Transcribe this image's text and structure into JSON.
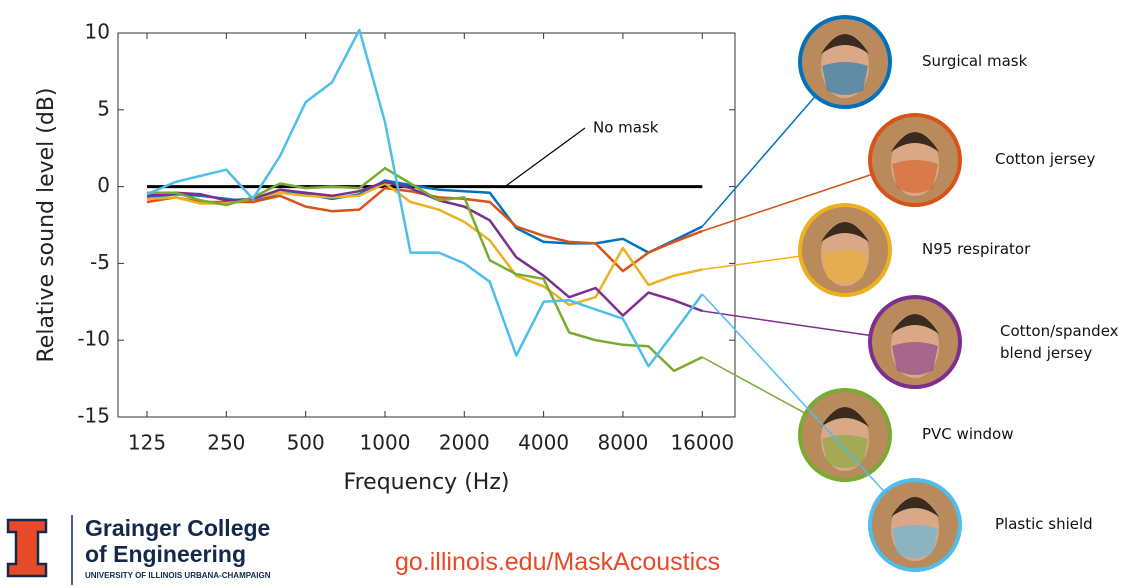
{
  "chart_data": {
    "type": "line",
    "x": [
      125,
      160,
      200,
      250,
      315,
      400,
      500,
      630,
      800,
      1000,
      1250,
      1600,
      2000,
      2500,
      3150,
      4000,
      5000,
      6300,
      8000,
      10000,
      12500,
      16000
    ],
    "xscale": "log",
    "xlim": [
      97,
      21300
    ],
    "xticks": [
      125,
      250,
      500,
      1000,
      2000,
      4000,
      8000,
      16000
    ],
    "ylim": [
      -15,
      10
    ],
    "yticks": [
      10,
      5,
      0,
      -5,
      -10,
      -15
    ],
    "xlabel": "Frequency (Hz)",
    "ylabel": "Relative sound level (dB)",
    "grid": false,
    "series": [
      {
        "name": "No mask",
        "color": "#000000",
        "values": [
          0,
          0,
          0,
          0,
          0,
          0,
          0,
          0,
          0,
          0,
          0,
          0,
          0,
          0,
          0,
          0,
          0,
          0,
          0,
          0,
          0,
          0
        ]
      },
      {
        "name": "Surgical mask",
        "color": "#0072bd",
        "values": [
          -0.7,
          -0.5,
          -0.6,
          -0.8,
          -1,
          -0.4,
          -0.5,
          -0.8,
          -0.5,
          0.4,
          0.1,
          -0.2,
          -0.3,
          -0.4,
          -2.7,
          -3.6,
          -3.7,
          -3.7,
          -3.4,
          -4.3,
          -3.5,
          -2.6
        ]
      },
      {
        "name": "Cotton jersey",
        "color": "#d95319",
        "values": [
          -1,
          -0.7,
          -1,
          -1,
          -1,
          -0.6,
          -1.3,
          -1.6,
          -1.5,
          -0.1,
          -0.3,
          -0.7,
          -0.8,
          -1,
          -2.6,
          -3.2,
          -3.6,
          -3.7,
          -5.5,
          -4.3,
          -3.6,
          -2.9
        ]
      },
      {
        "name": "N95 respirator",
        "color": "#edb120",
        "values": [
          -0.8,
          -0.7,
          -1.1,
          -1.1,
          -0.8,
          -0.4,
          -0.6,
          -0.7,
          -0.6,
          0.2,
          -1,
          -1.5,
          -2.3,
          -3.5,
          -5.8,
          -6.5,
          -7.7,
          -7.2,
          -4,
          -6.4,
          -5.8,
          -5.4
        ]
      },
      {
        "name": "Cotton/spandex blend jersey",
        "color": "#7e2f8e",
        "values": [
          -0.6,
          -0.4,
          -0.5,
          -0.9,
          -0.8,
          -0.2,
          -0.4,
          -0.6,
          -0.3,
          0.3,
          -0.1,
          -0.9,
          -1.3,
          -2.2,
          -4.6,
          -5.8,
          -7.2,
          -6.6,
          -8.4,
          -6.9,
          -7.4,
          -8.1
        ]
      },
      {
        "name": "PVC window",
        "color": "#77ac30",
        "values": [
          -0.4,
          -0.4,
          -0.9,
          -1.2,
          -0.7,
          0.2,
          -0.1,
          0,
          -0.1,
          1.2,
          0.2,
          -0.9,
          -0.7,
          -4.8,
          -5.7,
          -6,
          -9.5,
          -10,
          -10.3,
          -10.4,
          -12,
          -11.1
        ]
      },
      {
        "name": "Plastic shield",
        "color": "#4dbeee",
        "values": [
          -0.5,
          0.3,
          0.7,
          1.1,
          -0.8,
          2,
          5.5,
          6.8,
          10.2,
          4.2,
          -4.3,
          -4.3,
          -5,
          -6.2,
          -11,
          -7.5,
          -7.4,
          -8,
          -8.6,
          -11.7,
          -9.5,
          -7
        ]
      }
    ]
  },
  "footer": {
    "college_line1": "Grainger College",
    "college_line2": "of Engineering",
    "university": "UNIVERSITY OF ILLINOIS URBANA-CHAMPAIGN",
    "url": "go.illinois.edu/MaskAcoustics"
  }
}
